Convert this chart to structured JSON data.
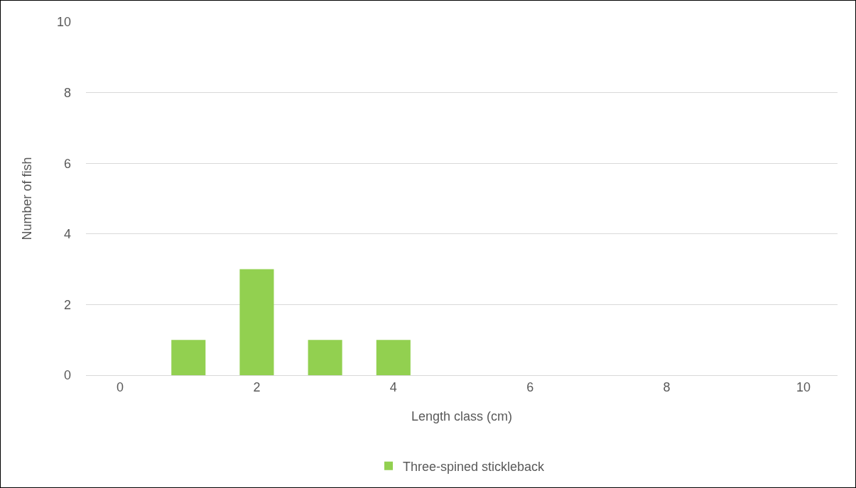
{
  "chart_data": {
    "type": "bar",
    "xlabel": "Length class (cm)",
    "ylabel": "Number of fish",
    "x": [
      0,
      1,
      2,
      3,
      4,
      5,
      6,
      7,
      8,
      9,
      10
    ],
    "series": [
      {
        "name": "Three-spined stickleback",
        "color": "#92d050",
        "values": [
          0,
          1,
          3,
          1,
          1,
          0,
          0,
          0,
          0,
          0,
          0
        ]
      }
    ],
    "xlim": [
      -0.5,
      10.5
    ],
    "xticks": [
      0,
      2,
      4,
      6,
      8,
      10
    ],
    "ylim": [
      0,
      10
    ],
    "yticks": [
      0,
      2,
      4,
      6,
      8,
      10
    ],
    "grid": "y",
    "legend": "bottom"
  }
}
